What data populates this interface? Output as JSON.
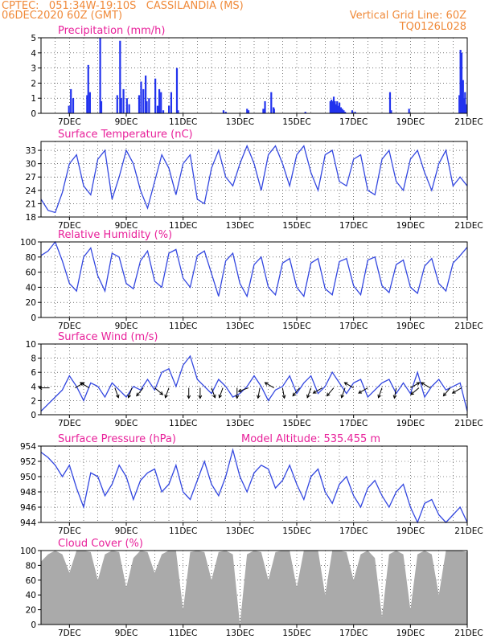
{
  "header": {
    "left_line1": "CPTEC:   051:34W-19:10S   CASSILANDIA (MS)",
    "left_line2": "06DEC2020 60Z (GMT)",
    "right_line1": "Vertical Grid Line: 60Z",
    "right_line2": "TQ0126L028",
    "color": "#f08a3a"
  },
  "colors": {
    "title": "#e8209a",
    "line": "#3347e0",
    "bars": "#2233ee",
    "cloud": "#aaaaaa",
    "arrows": "#000000"
  },
  "x_axis": {
    "start_day": 6.0,
    "end_day": 21.0,
    "ticks": [
      {
        "day": 7,
        "label": "7DEC"
      },
      {
        "day": 9,
        "label": "9DEC"
      },
      {
        "day": 11,
        "label": "11DEC"
      },
      {
        "day": 13,
        "label": "13DEC"
      },
      {
        "day": 15,
        "label": "15DEC"
      },
      {
        "day": 17,
        "label": "17DEC"
      },
      {
        "day": 19,
        "label": "19DEC"
      },
      {
        "day": 21,
        "label": "21DEC"
      }
    ]
  },
  "chart_data": [
    {
      "type": "bar",
      "title": "Precipitation (mm/h)",
      "ylim": [
        0,
        5
      ],
      "yticks": [
        0,
        1,
        2,
        3,
        4,
        5
      ],
      "x_day": [
        6.98,
        7.05,
        7.13,
        7.62,
        7.66,
        7.72,
        8.08,
        8.12,
        8.68,
        8.78,
        8.82,
        8.9,
        9.02,
        9.1,
        9.45,
        9.52,
        9.6,
        9.68,
        9.72,
        9.8,
        10.02,
        10.1,
        10.16,
        10.22,
        10.3,
        10.5,
        10.58,
        10.78,
        10.82,
        12.42,
        12.5,
        13.25,
        13.3,
        13.82,
        13.88,
        14.1,
        14.18,
        14.2,
        15.3,
        16.18,
        16.22,
        16.26,
        16.3,
        16.34,
        16.38,
        16.42,
        16.46,
        16.5,
        16.55,
        16.6,
        16.65,
        16.7,
        16.95,
        17.05,
        18.28,
        18.32,
        18.95,
        20.72,
        20.76,
        20.8,
        20.85,
        20.88,
        20.92,
        20.95
      ],
      "values": [
        0.5,
        1.6,
        1.0,
        1.2,
        3.2,
        1.4,
        5.0,
        0.8,
        1.2,
        4.8,
        1.0,
        1.6,
        1.0,
        0.6,
        1.2,
        2.1,
        1.6,
        2.5,
        0.8,
        1.0,
        2.3,
        0.5,
        1.6,
        1.4,
        0.2,
        0.5,
        1.4,
        3.0,
        0.2,
        0.2,
        0.1,
        0.3,
        0.2,
        0.3,
        0.8,
        1.4,
        0.4,
        0.3,
        0.1,
        0.8,
        0.9,
        0.8,
        1.1,
        0.8,
        0.6,
        0.8,
        0.5,
        0.7,
        0.4,
        0.3,
        0.2,
        0.1,
        0.2,
        0.1,
        1.4,
        0.2,
        0.3,
        1.2,
        4.2,
        4.0,
        2.2,
        1.0,
        1.4,
        0.6
      ]
    },
    {
      "type": "line",
      "title": "Surface Temperature (nC)",
      "ylim": [
        18,
        35
      ],
      "yticks": [
        18,
        21,
        24,
        27,
        30,
        33
      ],
      "x_day": [
        6.0,
        6.25,
        6.5,
        6.75,
        7.0,
        7.25,
        7.5,
        7.75,
        8.0,
        8.25,
        8.5,
        8.75,
        9.0,
        9.25,
        9.5,
        9.75,
        10.0,
        10.25,
        10.5,
        10.75,
        11.0,
        11.25,
        11.5,
        11.75,
        12.0,
        12.25,
        12.5,
        12.75,
        13.0,
        13.25,
        13.5,
        13.75,
        14.0,
        14.25,
        14.5,
        14.75,
        15.0,
        15.25,
        15.5,
        15.75,
        16.0,
        16.25,
        16.5,
        16.75,
        17.0,
        17.25,
        17.5,
        17.75,
        18.0,
        18.25,
        18.5,
        18.75,
        19.0,
        19.25,
        19.5,
        19.75,
        20.0,
        20.25,
        20.5,
        20.75,
        21.0
      ],
      "values": [
        22,
        19.5,
        19,
        23.5,
        30,
        32,
        25,
        23,
        31,
        33,
        22,
        27,
        33,
        30,
        24,
        20,
        26,
        32,
        29,
        23,
        30,
        32,
        22,
        21,
        29,
        33,
        27,
        25,
        30,
        34,
        30,
        24,
        32,
        34,
        30,
        25,
        32,
        34,
        28,
        24,
        32,
        33,
        26,
        25,
        31,
        32,
        24,
        23,
        31,
        33,
        26,
        24,
        31,
        33,
        28,
        24,
        30,
        33,
        25,
        27,
        25
      ]
    },
    {
      "type": "line",
      "title": "Relative Humidity (%)",
      "ylim": [
        0,
        100
      ],
      "yticks": [
        0,
        20,
        40,
        60,
        80,
        100
      ],
      "x_day": [
        6.0,
        6.25,
        6.5,
        6.75,
        7.0,
        7.25,
        7.5,
        7.75,
        8.0,
        8.25,
        8.5,
        8.75,
        9.0,
        9.25,
        9.5,
        9.75,
        10.0,
        10.25,
        10.5,
        10.75,
        11.0,
        11.25,
        11.5,
        11.75,
        12.0,
        12.25,
        12.5,
        12.75,
        13.0,
        13.25,
        13.5,
        13.75,
        14.0,
        14.25,
        14.5,
        14.75,
        15.0,
        15.25,
        15.5,
        15.75,
        16.0,
        16.25,
        16.5,
        16.75,
        17.0,
        17.25,
        17.5,
        17.75,
        18.0,
        18.25,
        18.5,
        18.75,
        19.0,
        19.25,
        19.5,
        19.75,
        20.0,
        20.25,
        20.5,
        20.75,
        21.0
      ],
      "values": [
        82,
        88,
        100,
        75,
        45,
        35,
        80,
        92,
        55,
        35,
        85,
        80,
        45,
        38,
        75,
        88,
        48,
        40,
        85,
        90,
        52,
        40,
        82,
        88,
        58,
        28,
        75,
        85,
        45,
        28,
        70,
        80,
        40,
        30,
        72,
        78,
        40,
        28,
        72,
        78,
        38,
        30,
        74,
        78,
        42,
        30,
        76,
        80,
        42,
        33,
        70,
        76,
        40,
        32,
        68,
        78,
        45,
        35,
        72,
        82,
        93
      ]
    },
    {
      "type": "line",
      "title": "Surface Wind (m/s)",
      "ylim": [
        0,
        10
      ],
      "yticks": [
        0,
        2,
        4,
        6,
        8,
        10
      ],
      "x_day": [
        6.0,
        6.25,
        6.5,
        6.75,
        7.0,
        7.25,
        7.5,
        7.75,
        8.0,
        8.25,
        8.5,
        8.75,
        9.0,
        9.25,
        9.5,
        9.75,
        10.0,
        10.25,
        10.5,
        10.75,
        11.0,
        11.25,
        11.5,
        11.75,
        12.0,
        12.25,
        12.5,
        12.75,
        13.0,
        13.25,
        13.5,
        13.75,
        14.0,
        14.25,
        14.5,
        14.75,
        15.0,
        15.25,
        15.5,
        15.75,
        16.0,
        16.25,
        16.5,
        16.75,
        17.0,
        17.25,
        17.5,
        17.75,
        18.0,
        18.25,
        18.5,
        18.75,
        19.0,
        19.25,
        19.5,
        19.75,
        20.0,
        20.25,
        20.5,
        20.75,
        21.0
      ],
      "values": [
        0.5,
        1.5,
        2.5,
        3.5,
        5.5,
        4.0,
        2.0,
        4.5,
        4.0,
        2.5,
        4.5,
        3.5,
        2.5,
        4.0,
        3.5,
        5.0,
        3.5,
        6.0,
        6.5,
        4.0,
        7.0,
        8.3,
        5.0,
        4.0,
        3.0,
        5.0,
        4.0,
        2.5,
        3.0,
        4.0,
        5.5,
        4.0,
        2.0,
        3.5,
        4.0,
        5.5,
        3.0,
        4.5,
        5.5,
        3.0,
        4.0,
        6.0,
        4.5,
        3.0,
        4.5,
        5.0,
        2.5,
        3.5,
        4.5,
        5.0,
        3.0,
        4.5,
        3.0,
        6.0,
        2.5,
        4.0,
        5.0,
        3.5,
        4.0,
        4.5,
        0.5
      ],
      "barbs": [
        {
          "day": 6.3,
          "dir_deg": 270
        },
        {
          "day": 7.2,
          "dir_deg": 60
        },
        {
          "day": 7.7,
          "dir_deg": 300
        },
        {
          "day": 8.6,
          "dir_deg": 160
        },
        {
          "day": 9.2,
          "dir_deg": 200
        },
        {
          "day": 9.6,
          "dir_deg": 220
        },
        {
          "day": 10.0,
          "dir_deg": 130
        },
        {
          "day": 10.5,
          "dir_deg": 200
        },
        {
          "day": 11.2,
          "dir_deg": 180
        },
        {
          "day": 11.6,
          "dir_deg": 180
        },
        {
          "day": 12.0,
          "dir_deg": 160
        },
        {
          "day": 12.4,
          "dir_deg": 200
        },
        {
          "day": 12.9,
          "dir_deg": 180
        },
        {
          "day": 13.3,
          "dir_deg": 250
        },
        {
          "day": 13.7,
          "dir_deg": 190
        },
        {
          "day": 14.2,
          "dir_deg": 300
        },
        {
          "day": 14.5,
          "dir_deg": 170
        },
        {
          "day": 15.1,
          "dir_deg": 220
        },
        {
          "day": 15.5,
          "dir_deg": 200
        },
        {
          "day": 15.9,
          "dir_deg": 240
        },
        {
          "day": 16.3,
          "dir_deg": 220
        },
        {
          "day": 16.7,
          "dir_deg": 200
        },
        {
          "day": 17.0,
          "dir_deg": 300
        },
        {
          "day": 17.5,
          "dir_deg": 240
        },
        {
          "day": 18.0,
          "dir_deg": 200
        },
        {
          "day": 18.5,
          "dir_deg": 190
        },
        {
          "day": 19.0,
          "dir_deg": 60
        },
        {
          "day": 19.3,
          "dir_deg": 230
        },
        {
          "day": 19.7,
          "dir_deg": 300
        },
        {
          "day": 20.4,
          "dir_deg": 220
        },
        {
          "day": 20.8,
          "dir_deg": 240
        }
      ]
    },
    {
      "type": "line",
      "title": "Surface Pressure (hPa)",
      "subtitle": "Model Altitude: 535.455  m",
      "ylim": [
        944,
        954
      ],
      "yticks": [
        944,
        946,
        948,
        950,
        952,
        954
      ],
      "x_day": [
        6.0,
        6.25,
        6.5,
        6.75,
        7.0,
        7.25,
        7.5,
        7.75,
        8.0,
        8.25,
        8.5,
        8.75,
        9.0,
        9.25,
        9.5,
        9.75,
        10.0,
        10.25,
        10.5,
        10.75,
        11.0,
        11.25,
        11.5,
        11.75,
        12.0,
        12.25,
        12.5,
        12.75,
        13.0,
        13.25,
        13.5,
        13.75,
        14.0,
        14.25,
        14.5,
        14.75,
        15.0,
        15.25,
        15.5,
        15.75,
        16.0,
        16.25,
        16.5,
        16.75,
        17.0,
        17.25,
        17.5,
        17.75,
        18.0,
        18.25,
        18.5,
        18.75,
        19.0,
        19.25,
        19.5,
        19.75,
        20.0,
        20.25,
        20.5,
        20.75,
        21.0
      ],
      "values": [
        953.2,
        952.5,
        951.5,
        950,
        951.5,
        948.5,
        946,
        950.5,
        950,
        947.5,
        949,
        951.5,
        950,
        947,
        949.5,
        950.5,
        951,
        948,
        949,
        951.5,
        948,
        947,
        949.5,
        952,
        949,
        947.5,
        950,
        953.5,
        950,
        948,
        950.5,
        951.5,
        951,
        948.5,
        949.5,
        951.5,
        949,
        947,
        950,
        951,
        948,
        946.5,
        949,
        950,
        947.5,
        946,
        948.5,
        949.5,
        947.5,
        946,
        948,
        949,
        946,
        944,
        946.5,
        947,
        945,
        943.5,
        945,
        946,
        944
      ]
    },
    {
      "type": "area",
      "title": "Cloud Cover (%)",
      "ylim": [
        0,
        100
      ],
      "yticks": [
        0,
        20,
        40,
        60,
        80,
        100
      ],
      "x_day": [
        6.0,
        6.25,
        6.5,
        6.75,
        7.0,
        7.25,
        7.5,
        7.75,
        8.0,
        8.25,
        8.5,
        8.75,
        9.0,
        9.25,
        9.5,
        9.75,
        10.0,
        10.25,
        10.5,
        10.75,
        11.0,
        11.25,
        11.5,
        11.75,
        12.0,
        12.25,
        12.5,
        12.75,
        13.0,
        13.25,
        13.5,
        13.75,
        14.0,
        14.25,
        14.5,
        14.75,
        15.0,
        15.25,
        15.5,
        15.75,
        16.0,
        16.25,
        16.5,
        16.75,
        17.0,
        17.25,
        17.5,
        17.75,
        18.0,
        18.25,
        18.5,
        18.75,
        19.0,
        19.25,
        19.5,
        19.75,
        20.0,
        20.25,
        20.5,
        20.75,
        21.0
      ],
      "values": [
        85,
        95,
        100,
        95,
        70,
        100,
        100,
        98,
        60,
        95,
        100,
        98,
        50,
        90,
        100,
        98,
        70,
        95,
        100,
        100,
        20,
        98,
        100,
        98,
        60,
        98,
        100,
        95,
        0,
        95,
        100,
        98,
        60,
        98,
        100,
        100,
        50,
        100,
        100,
        100,
        40,
        100,
        100,
        98,
        60,
        95,
        100,
        90,
        10,
        95,
        100,
        95,
        20,
        95,
        100,
        95,
        40,
        100,
        100,
        100,
        98
      ]
    }
  ]
}
